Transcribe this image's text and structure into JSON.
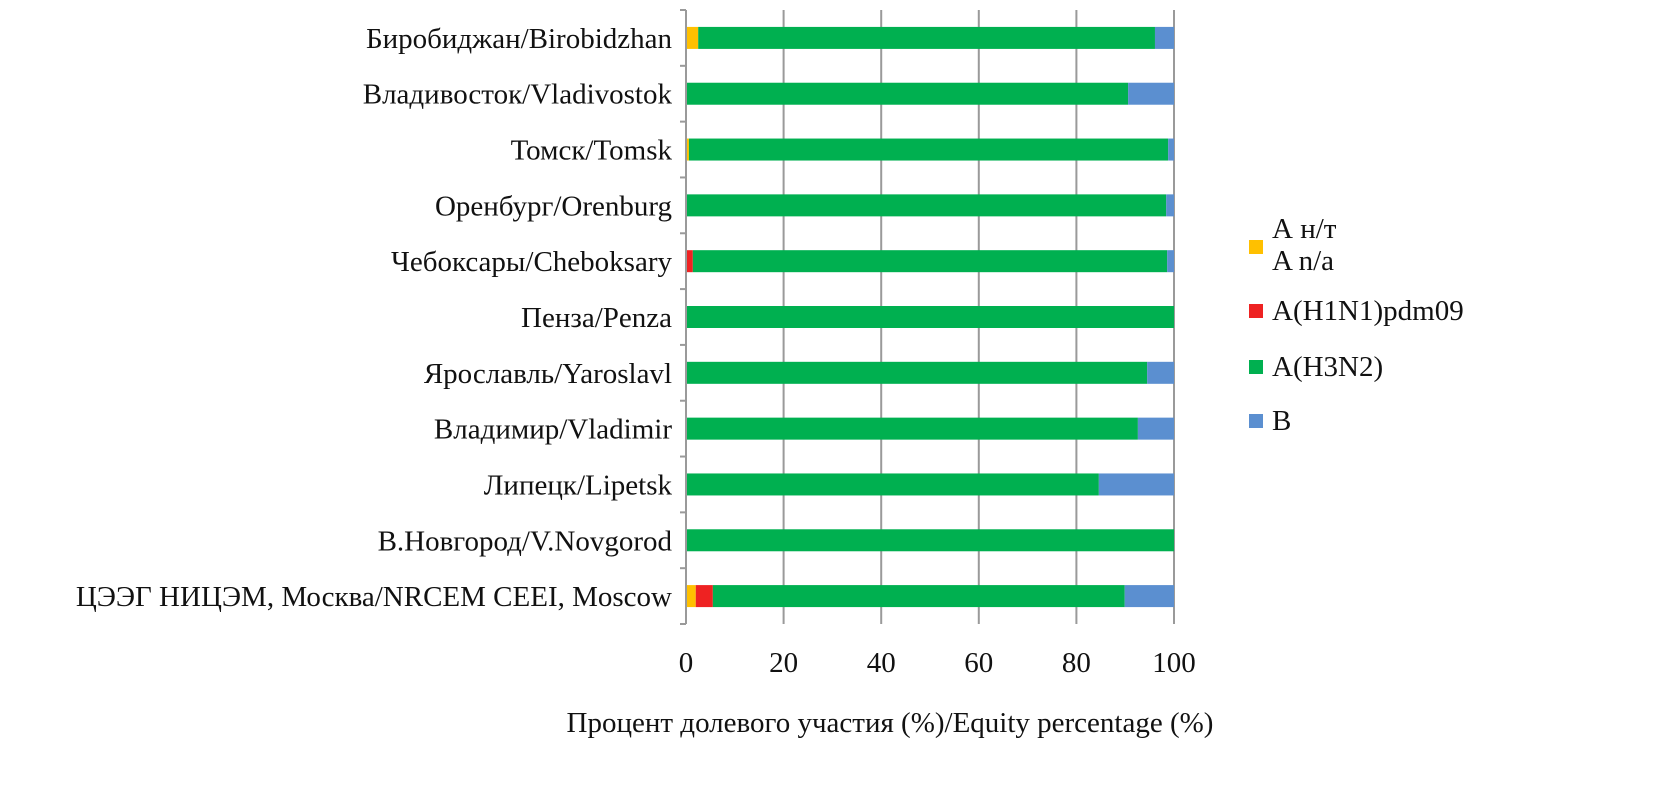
{
  "chart_data": {
    "type": "bar",
    "orientation": "horizontal",
    "stacked": true,
    "title": "",
    "xlabel": "Процент долевого участия (%)/Equity percentage (%)",
    "ylabel": "",
    "xlim": [
      0,
      100
    ],
    "xticks": [
      0,
      20,
      40,
      60,
      80,
      100
    ],
    "grid": true,
    "legend_position": "right",
    "categories": [
      "Бироби­джан/Birobidzhan",
      "Владивосток/Vladivostok",
      "Томск/Tomsk",
      "Оренбург/Orenburg",
      "Чебоксары/Cheboksary",
      "Пенза/Penza",
      "Ярославль/Yaroslavl",
      "Владимир/Vladimir",
      "Липецк/Lipetsk",
      "В.Новгород/V.Novgorod",
      "ЦЭЭГ НИЦЭМ, Москва/NRCEM CEEI, Moscow"
    ],
    "series": [
      {
        "name": "А н/т\nA n/a",
        "legend_lines": [
          "А н/т",
          "A n/a"
        ],
        "color": "#FFC000",
        "values": [
          2.5,
          0,
          0.6,
          0,
          0,
          0,
          0,
          0,
          0,
          0,
          2.0
        ]
      },
      {
        "name": "A(H1N1)pdm09",
        "legend_lines": [
          "A(H1N1)pdm09"
        ],
        "color": "#EE2222",
        "values": [
          0,
          0,
          0,
          0,
          1.4,
          0,
          0,
          0,
          0,
          0,
          3.5
        ]
      },
      {
        "name": "A(H3N2)",
        "legend_lines": [
          "A(H3N2)"
        ],
        "color": "#00B050",
        "values": [
          93.6,
          90.6,
          98.2,
          98.4,
          97.2,
          100,
          94.5,
          92.6,
          84.6,
          100,
          84.4
        ]
      },
      {
        "name": "B",
        "legend_lines": [
          "B"
        ],
        "color": "#5B8FD0",
        "values": [
          3.9,
          9.4,
          1.2,
          1.6,
          1.4,
          0,
          5.5,
          7.4,
          15.4,
          0,
          10.1
        ]
      }
    ]
  }
}
